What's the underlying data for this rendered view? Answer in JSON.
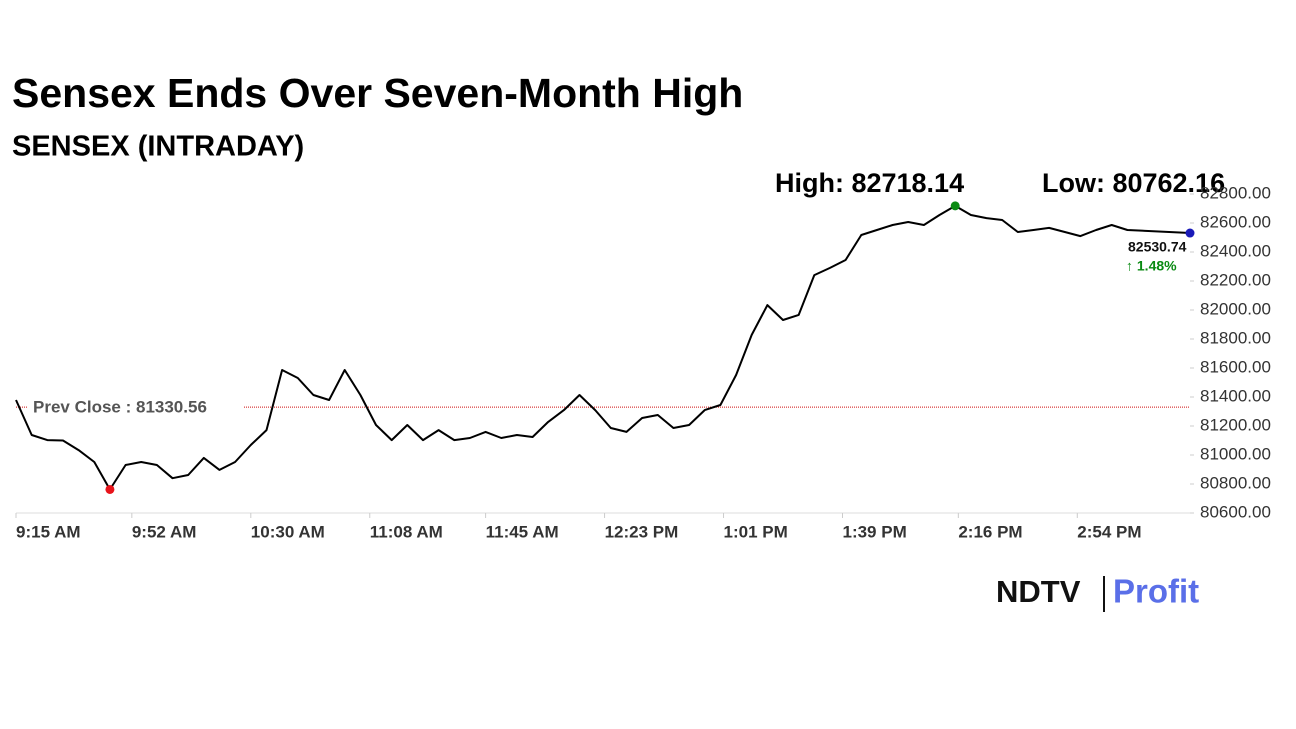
{
  "chart_data": {
    "type": "line",
    "title": "Sensex Ends Over Seven-Month High",
    "subtitle": "SENSEX (INTRADAY)",
    "high_label": "High: 82718.14",
    "low_label": "Low: 80762.16",
    "prev_close": 81330.56,
    "prev_close_label": "Prev Close : 81330.56",
    "change_label": "↑ 1.48%",
    "logo": {
      "left": "NDTV",
      "right": "Profit"
    },
    "color": "#000000",
    "low_color": "#e8141b",
    "high_color": "#0a8a12",
    "last_color": "#1a1ab8",
    "prev_close_color": "#d01010",
    "change_color": "#0a8a12",
    "x": [
      "9:15 AM",
      "9:20 AM",
      "9:25 AM",
      "9:30 AM",
      "9:35 AM",
      "9:40 AM",
      "9:45 AM",
      "9:50 AM",
      "9:55 AM",
      "10:00 AM",
      "10:05 AM",
      "10:10 AM",
      "10:15 AM",
      "10:20 AM",
      "10:25 AM",
      "10:30 AM",
      "10:35 AM",
      "10:40 AM",
      "10:45 AM",
      "10:50 AM",
      "10:55 AM",
      "11:00 AM",
      "11:05 AM",
      "11:10 AM",
      "11:15 AM",
      "11:20 AM",
      "11:25 AM",
      "11:30 AM",
      "11:35 AM",
      "11:40 AM",
      "11:45 AM",
      "11:50 AM",
      "11:55 AM",
      "12:00 PM",
      "12:05 PM",
      "12:10 PM",
      "12:15 PM",
      "12:20 PM",
      "12:25 PM",
      "12:30 PM",
      "12:35 PM",
      "12:40 PM",
      "12:45 PM",
      "12:50 PM",
      "12:55 PM",
      "1:00 PM",
      "1:05 PM",
      "1:10 PM",
      "1:15 PM",
      "1:20 PM",
      "1:25 PM",
      "1:30 PM",
      "1:35 PM",
      "1:40 PM",
      "1:45 PM",
      "1:50 PM",
      "1:55 PM",
      "2:00 PM",
      "2:05 PM",
      "2:10 PM",
      "2:15 PM",
      "2:20 PM",
      "2:25 PM",
      "2:30 PM",
      "2:35 PM",
      "2:40 PM",
      "2:45 PM",
      "2:50 PM",
      "2:55 PM",
      "3:00 PM",
      "3:05 PM",
      "3:10 PM",
      "3:30 PM"
    ],
    "values": [
      81379,
      81138,
      81103,
      81100,
      81034,
      80952,
      80762.16,
      80931,
      80952,
      80931,
      80840,
      80862,
      80980,
      80897,
      80952,
      81069,
      81172,
      81586,
      81531,
      81414,
      81379,
      81586,
      81414,
      81207,
      81103,
      81207,
      81103,
      81172,
      81103,
      81117,
      81159,
      81117,
      81138,
      81124,
      81228,
      81310,
      81414,
      81310,
      81186,
      81159,
      81255,
      81276,
      81186,
      81207,
      81310,
      81345,
      81552,
      81828,
      82034,
      81931,
      81966,
      82241,
      82290,
      82345,
      82517,
      82552,
      82586,
      82607,
      82586,
      82655,
      82718.14,
      82655,
      82634,
      82621,
      82538,
      82552,
      82566,
      82538,
      82510,
      82552,
      82586,
      82552,
      82530.74
    ],
    "xlim": [
      "9:15 AM",
      "3:30 PM"
    ],
    "xticks": [
      "9:15 AM",
      "9:52 AM",
      "10:30 AM",
      "11:08 AM",
      "11:45 AM",
      "12:23 PM",
      "1:01 PM",
      "1:39 PM",
      "2:16 PM",
      "2:54 PM"
    ],
    "ylim": [
      80600,
      82800
    ],
    "yticks": [
      {
        "value": 80600,
        "label": "80600.00"
      },
      {
        "value": 80800,
        "label": "80800.00"
      },
      {
        "value": 81000,
        "label": "81000.00"
      },
      {
        "value": 81200,
        "label": "81200.00"
      },
      {
        "value": 81400,
        "label": "81400.00"
      },
      {
        "value": 81600,
        "label": "81600.00"
      },
      {
        "value": 81800,
        "label": "81800.00"
      },
      {
        "value": 82000,
        "label": "82000.00"
      },
      {
        "value": 82200,
        "label": "82200.00"
      },
      {
        "value": 82400,
        "label": "82400.00"
      },
      {
        "value": 82600,
        "label": "82600.00"
      },
      {
        "value": 82800,
        "label": "82800.00"
      }
    ]
  }
}
